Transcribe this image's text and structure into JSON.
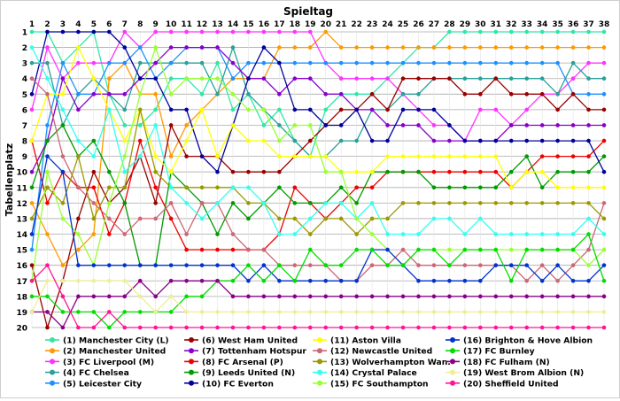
{
  "chart_data": {
    "type": "line",
    "title": "Spieltag",
    "ylabel": "Tabellenplatz",
    "xlabel": "",
    "x": [
      1,
      2,
      3,
      4,
      5,
      6,
      7,
      8,
      9,
      10,
      11,
      12,
      13,
      14,
      15,
      16,
      17,
      18,
      19,
      20,
      21,
      22,
      23,
      24,
      25,
      26,
      27,
      28,
      29,
      30,
      31,
      32,
      33,
      34,
      35,
      36,
      37,
      38
    ],
    "ylim": [
      1,
      20
    ],
    "y_ticks": [
      1,
      2,
      3,
      4,
      5,
      6,
      7,
      8,
      9,
      10,
      11,
      12,
      13,
      14,
      15,
      16,
      17,
      18,
      19,
      20
    ],
    "y_inverted": true,
    "x_axis_position": "top",
    "grid": true,
    "legend_position": "bottom",
    "series": [
      {
        "name": "(1) Manchester City (L)",
        "color": "#2ee6a6",
        "values": [
          1,
          1,
          3,
          2,
          1,
          5,
          7,
          7,
          6,
          4,
          4,
          5,
          3,
          6,
          5,
          7,
          6,
          8,
          9,
          6,
          5,
          5,
          5,
          4,
          3,
          2,
          2,
          1,
          1,
          1,
          1,
          1,
          1,
          1,
          1,
          1,
          1,
          1
        ]
      },
      {
        "name": "(2) Manchester United",
        "color": "#ff9900",
        "values": [
          12,
          14,
          16,
          15,
          14,
          4,
          3,
          5,
          5,
          9,
          7,
          6,
          5,
          4,
          4,
          4,
          2,
          2,
          2,
          1,
          2,
          2,
          2,
          2,
          2,
          2,
          2,
          2,
          2,
          2,
          2,
          2,
          2,
          2,
          2,
          2,
          2,
          2
        ]
      },
      {
        "name": "(3) FC Liverpool (M)",
        "color": "#ff33ff",
        "values": [
          6,
          2,
          4,
          3,
          3,
          3,
          1,
          2,
          1,
          1,
          1,
          1,
          1,
          1,
          1,
          1,
          1,
          1,
          1,
          3,
          4,
          4,
          4,
          4,
          5,
          6,
          7,
          7,
          8,
          6,
          6,
          7,
          6,
          5,
          5,
          4,
          3,
          3
        ]
      },
      {
        "name": "(4) FC Chelsea",
        "color": "#2aa198",
        "values": [
          3,
          3,
          7,
          5,
          4,
          5,
          6,
          3,
          3,
          3,
          3,
          3,
          5,
          2,
          5,
          6,
          7,
          8,
          9,
          9,
          8,
          8,
          6,
          6,
          5,
          5,
          4,
          4,
          4,
          4,
          4,
          4,
          4,
          4,
          5,
          3,
          4,
          4
        ]
      },
      {
        "name": "(5) Leicester City",
        "color": "#1e90ff",
        "values": [
          15,
          7,
          3,
          5,
          5,
          3,
          3,
          2,
          4,
          3,
          2,
          2,
          2,
          4,
          3,
          3,
          3,
          3,
          3,
          3,
          3,
          3,
          3,
          3,
          3,
          3,
          3,
          3,
          3,
          3,
          3,
          3,
          3,
          3,
          3,
          5,
          5,
          5
        ]
      },
      {
        "name": "(6) West Ham United",
        "color": "#990000",
        "values": [
          16,
          20,
          17,
          13,
          10,
          12,
          11,
          9,
          12,
          7,
          9,
          9,
          9,
          10,
          10,
          10,
          10,
          9,
          8,
          7,
          6,
          6,
          5,
          6,
          4,
          4,
          4,
          4,
          5,
          5,
          4,
          5,
          5,
          5,
          6,
          5,
          6,
          6
        ]
      },
      {
        "name": "(7) Tottenham Hotspur",
        "color": "#8800cc",
        "values": [
          10,
          8,
          4,
          6,
          5,
          5,
          5,
          4,
          3,
          2,
          2,
          2,
          2,
          3,
          4,
          4,
          5,
          4,
          4,
          5,
          5,
          6,
          6,
          7,
          7,
          7,
          8,
          8,
          8,
          8,
          8,
          7,
          7,
          7,
          7,
          7,
          7,
          7
        ]
      },
      {
        "name": "(8) FC Arsenal (P)",
        "color": "#ee0000",
        "values": [
          8,
          12,
          10,
          11,
          11,
          14,
          12,
          8,
          11,
          13,
          15,
          15,
          15,
          15,
          15,
          15,
          14,
          11,
          12,
          13,
          12,
          11,
          11,
          10,
          10,
          10,
          10,
          10,
          10,
          10,
          10,
          11,
          10,
          9,
          9,
          9,
          9,
          8
        ]
      },
      {
        "name": "(9) Leeds United (N)",
        "color": "#009900",
        "values": [
          11,
          8,
          7,
          9,
          8,
          10,
          12,
          16,
          16,
          10,
          11,
          12,
          14,
          12,
          13,
          12,
          11,
          12,
          12,
          12,
          11,
          12,
          10,
          10,
          10,
          10,
          11,
          11,
          11,
          11,
          11,
          10,
          9,
          11,
          10,
          10,
          10,
          9
        ]
      },
      {
        "name": "(10) FC Everton",
        "color": "#000099",
        "values": [
          5,
          1,
          1,
          1,
          1,
          1,
          2,
          4,
          4,
          6,
          6,
          9,
          10,
          7,
          4,
          2,
          3,
          6,
          6,
          7,
          7,
          6,
          8,
          8,
          6,
          6,
          6,
          7,
          8,
          8,
          8,
          8,
          8,
          8,
          8,
          8,
          8,
          10
        ]
      },
      {
        "name": "(11) Aston Villa",
        "color": "#ffff00",
        "values": [
          8,
          5,
          5,
          2,
          4,
          6,
          8,
          6,
          9,
          10,
          8,
          6,
          9,
          7,
          8,
          8,
          9,
          9,
          9,
          9,
          10,
          10,
          10,
          9,
          9,
          9,
          9,
          9,
          9,
          9,
          9,
          11,
          10,
          10,
          11,
          11,
          11,
          11
        ]
      },
      {
        "name": "(12) Newcastle United",
        "color": "#cc6677",
        "values": [
          4,
          5,
          9,
          11,
          12,
          13,
          14,
          13,
          13,
          12,
          14,
          12,
          12,
          14,
          15,
          15,
          16,
          16,
          16,
          16,
          17,
          17,
          16,
          16,
          15,
          16,
          16,
          16,
          16,
          16,
          16,
          16,
          17,
          16,
          17,
          16,
          15,
          12
        ]
      },
      {
        "name": "(13) Wolverhampton Wan.",
        "color": "#999900",
        "values": [
          13,
          11,
          12,
          9,
          13,
          11,
          11,
          6,
          10,
          11,
          11,
          11,
          11,
          11,
          12,
          12,
          13,
          13,
          14,
          13,
          13,
          14,
          13,
          13,
          12,
          12,
          12,
          12,
          12,
          12,
          12,
          12,
          12,
          12,
          12,
          12,
          12,
          13
        ]
      },
      {
        "name": "(14) Crystal Palace",
        "color": "#33ffee",
        "values": [
          2,
          4,
          6,
          8,
          9,
          6,
          10,
          9,
          7,
          11,
          12,
          13,
          12,
          11,
          11,
          12,
          14,
          14,
          13,
          12,
          12,
          13,
          12,
          14,
          14,
          14,
          13,
          13,
          14,
          13,
          14,
          14,
          14,
          14,
          14,
          14,
          13,
          14
        ]
      },
      {
        "name": "(15) FC Southampton",
        "color": "#99ff33",
        "values": [
          17,
          10,
          13,
          14,
          16,
          12,
          9,
          5,
          2,
          5,
          4,
          4,
          4,
          5,
          6,
          6,
          8,
          7,
          7,
          10,
          10,
          13,
          14,
          15,
          16,
          15,
          15,
          15,
          15,
          15,
          15,
          15,
          15,
          15,
          15,
          15,
          16,
          15
        ]
      },
      {
        "name": "(16) Brighton & Hove Albion",
        "color": "#0033cc",
        "values": [
          14,
          9,
          10,
          16,
          16,
          16,
          16,
          16,
          16,
          16,
          16,
          16,
          16,
          16,
          17,
          16,
          17,
          17,
          17,
          17,
          17,
          17,
          15,
          15,
          16,
          17,
          17,
          17,
          17,
          17,
          16,
          16,
          16,
          17,
          16,
          17,
          17,
          16
        ]
      },
      {
        "name": "(17) FC Burnley",
        "color": "#00dd00",
        "values": [
          18,
          18,
          19,
          19,
          19,
          20,
          19,
          19,
          19,
          19,
          18,
          18,
          17,
          17,
          16,
          17,
          16,
          17,
          15,
          16,
          16,
          15,
          15,
          16,
          16,
          15,
          15,
          16,
          15,
          15,
          15,
          17,
          15,
          15,
          15,
          15,
          14,
          17
        ]
      },
      {
        "name": "(18) FC Fulham (N)",
        "color": "#880088",
        "values": [
          19,
          19,
          20,
          18,
          18,
          18,
          18,
          17,
          18,
          17,
          17,
          17,
          17,
          18,
          18,
          18,
          18,
          18,
          18,
          18,
          18,
          18,
          18,
          18,
          18,
          18,
          18,
          18,
          18,
          18,
          18,
          18,
          18,
          18,
          18,
          18,
          18,
          18
        ]
      },
      {
        "name": "(19) West Brom Albion (N)",
        "color": "#eeee99",
        "values": [
          19,
          17,
          17,
          17,
          17,
          17,
          17,
          18,
          19,
          18,
          19,
          19,
          19,
          19,
          19,
          19,
          19,
          19,
          19,
          19,
          19,
          19,
          19,
          19,
          19,
          19,
          19,
          19,
          19,
          19,
          19,
          19,
          19,
          19,
          19,
          19,
          19,
          19
        ]
      },
      {
        "name": "(20) Sheffield United",
        "color": "#ff1493",
        "values": [
          17,
          16,
          18,
          20,
          20,
          19,
          20,
          20,
          20,
          20,
          20,
          20,
          20,
          20,
          20,
          20,
          20,
          20,
          20,
          20,
          20,
          20,
          20,
          20,
          20,
          20,
          20,
          20,
          20,
          20,
          20,
          20,
          20,
          20,
          20,
          20,
          20,
          20
        ]
      }
    ]
  }
}
